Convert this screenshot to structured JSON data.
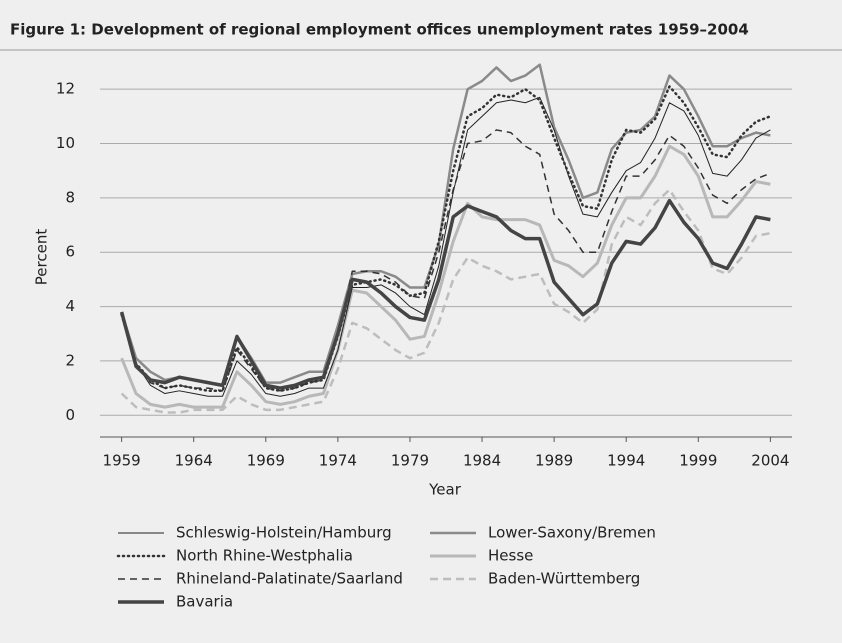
{
  "chart_data": {
    "type": "line",
    "title": "Figure 1: Development of regional employment offices unemployment rates 1959–2004",
    "x_label": "Year",
    "y_label": "Percent",
    "x": [
      1959,
      1960,
      1961,
      1962,
      1963,
      1964,
      1965,
      1966,
      1967,
      1968,
      1969,
      1970,
      1971,
      1972,
      1973,
      1974,
      1975,
      1976,
      1977,
      1978,
      1979,
      1980,
      1981,
      1982,
      1983,
      1984,
      1985,
      1986,
      1987,
      1988,
      1989,
      1990,
      1991,
      1992,
      1993,
      1994,
      1995,
      1996,
      1997,
      1998,
      1999,
      2000,
      2001,
      2002,
      2003,
      2004
    ],
    "xlim": [
      1957.5,
      2005.5
    ],
    "xticks": [
      1959,
      1964,
      1969,
      1974,
      1979,
      1984,
      1989,
      1994,
      1999,
      2004
    ],
    "ylim": [
      -0.8,
      13
    ],
    "yticks": [
      0,
      2,
      4,
      6,
      8,
      10,
      12
    ],
    "grid": true,
    "series": [
      {
        "name": "Schleswig-Holstein/Hamburg",
        "color": "#222222",
        "width": 1,
        "dash": "none",
        "values": [
          3.7,
          1.9,
          1.1,
          0.8,
          0.9,
          0.8,
          0.7,
          0.7,
          2.0,
          1.5,
          0.8,
          0.7,
          0.8,
          1.0,
          1.0,
          2.4,
          4.7,
          4.7,
          4.8,
          4.5,
          4.0,
          3.7,
          5.5,
          8.2,
          10.5,
          11.0,
          11.5,
          11.6,
          11.5,
          11.7,
          10.5,
          8.8,
          7.4,
          7.3,
          8.2,
          9.0,
          9.3,
          10.2,
          11.5,
          11.2,
          10.3,
          8.9,
          8.8,
          9.4,
          10.2,
          10.5
        ]
      },
      {
        "name": "Lower-Saxony/Bremen",
        "color": "#8a8a8a",
        "width": 2.5,
        "dash": "none",
        "values": [
          3.8,
          2.1,
          1.6,
          1.3,
          1.4,
          1.3,
          1.2,
          1.1,
          2.9,
          2.1,
          1.2,
          1.2,
          1.4,
          1.6,
          1.6,
          3.3,
          5.2,
          5.3,
          5.3,
          5.1,
          4.7,
          4.7,
          6.3,
          9.8,
          12.0,
          12.3,
          12.8,
          12.3,
          12.5,
          12.9,
          10.6,
          9.4,
          8.0,
          8.2,
          9.8,
          10.4,
          10.5,
          11.0,
          12.5,
          12.0,
          11.0,
          9.9,
          9.9,
          10.2,
          10.4,
          10.3
        ]
      },
      {
        "name": "North Rhine-Westphalia",
        "color": "#333333",
        "width": 2.5,
        "dash": "1 4",
        "values": [
          3.7,
          1.9,
          1.3,
          1.0,
          1.1,
          1.0,
          0.9,
          0.9,
          2.5,
          1.8,
          1.0,
          0.9,
          1.0,
          1.2,
          1.3,
          2.9,
          4.8,
          4.9,
          5.0,
          4.8,
          4.4,
          4.5,
          6.4,
          9.0,
          11.0,
          11.3,
          11.8,
          11.7,
          12.0,
          11.6,
          10.2,
          8.9,
          7.7,
          7.6,
          9.4,
          10.5,
          10.4,
          10.9,
          12.1,
          11.5,
          10.6,
          9.6,
          9.5,
          10.3,
          10.8,
          11.0
        ]
      },
      {
        "name": "Hesse",
        "color": "#b8b8b8",
        "width": 3,
        "dash": "none",
        "values": [
          2.1,
          0.8,
          0.4,
          0.3,
          0.4,
          0.3,
          0.3,
          0.3,
          1.6,
          1.1,
          0.5,
          0.4,
          0.5,
          0.7,
          0.8,
          2.4,
          4.6,
          4.5,
          4.0,
          3.5,
          2.8,
          2.9,
          4.5,
          6.4,
          7.8,
          7.3,
          7.2,
          7.2,
          7.2,
          7.0,
          5.7,
          5.5,
          5.1,
          5.6,
          7.0,
          8.0,
          8.0,
          8.8,
          9.9,
          9.6,
          8.8,
          7.3,
          7.3,
          7.9,
          8.6,
          8.5
        ]
      },
      {
        "name": "Rhineland-Palatinate/Saarland",
        "color": "#333333",
        "width": 1.5,
        "dash": "7 5",
        "values": [
          3.7,
          1.9,
          1.2,
          1.0,
          1.1,
          1.0,
          1.0,
          0.9,
          2.4,
          1.7,
          1.0,
          0.9,
          1.0,
          1.2,
          1.3,
          2.9,
          5.3,
          5.3,
          5.2,
          4.9,
          4.4,
          4.3,
          6.0,
          8.3,
          10.0,
          10.1,
          10.5,
          10.4,
          9.9,
          9.6,
          7.4,
          6.8,
          6.0,
          6.0,
          7.5,
          8.8,
          8.8,
          9.4,
          10.3,
          9.9,
          9.1,
          8.1,
          7.8,
          8.3,
          8.7,
          8.9
        ]
      },
      {
        "name": "Baden-Württemberg",
        "color": "#bdbdbd",
        "width": 2.5,
        "dash": "8 5",
        "values": [
          0.8,
          0.3,
          0.2,
          0.1,
          0.1,
          0.2,
          0.2,
          0.2,
          0.7,
          0.4,
          0.2,
          0.2,
          0.3,
          0.4,
          0.5,
          1.7,
          3.4,
          3.2,
          2.8,
          2.4,
          2.1,
          2.3,
          3.4,
          5.0,
          5.8,
          5.5,
          5.3,
          5.0,
          5.1,
          5.2,
          4.1,
          3.8,
          3.4,
          3.9,
          6.3,
          7.3,
          7.0,
          7.8,
          8.3,
          7.5,
          6.8,
          5.4,
          5.2,
          5.8,
          6.6,
          6.7
        ]
      },
      {
        "name": "Bavaria",
        "color": "#444444",
        "width": 3.5,
        "dash": "none",
        "values": [
          3.8,
          1.8,
          1.3,
          1.2,
          1.4,
          1.3,
          1.2,
          1.1,
          2.9,
          2.0,
          1.1,
          1.0,
          1.1,
          1.3,
          1.4,
          3.0,
          5.0,
          4.9,
          4.5,
          4.0,
          3.6,
          3.5,
          5.0,
          7.3,
          7.7,
          7.5,
          7.3,
          6.8,
          6.5,
          6.5,
          4.9,
          4.3,
          3.7,
          4.1,
          5.6,
          6.4,
          6.3,
          6.9,
          7.9,
          7.1,
          6.5,
          5.6,
          5.4,
          6.3,
          7.3,
          7.2
        ]
      }
    ]
  }
}
